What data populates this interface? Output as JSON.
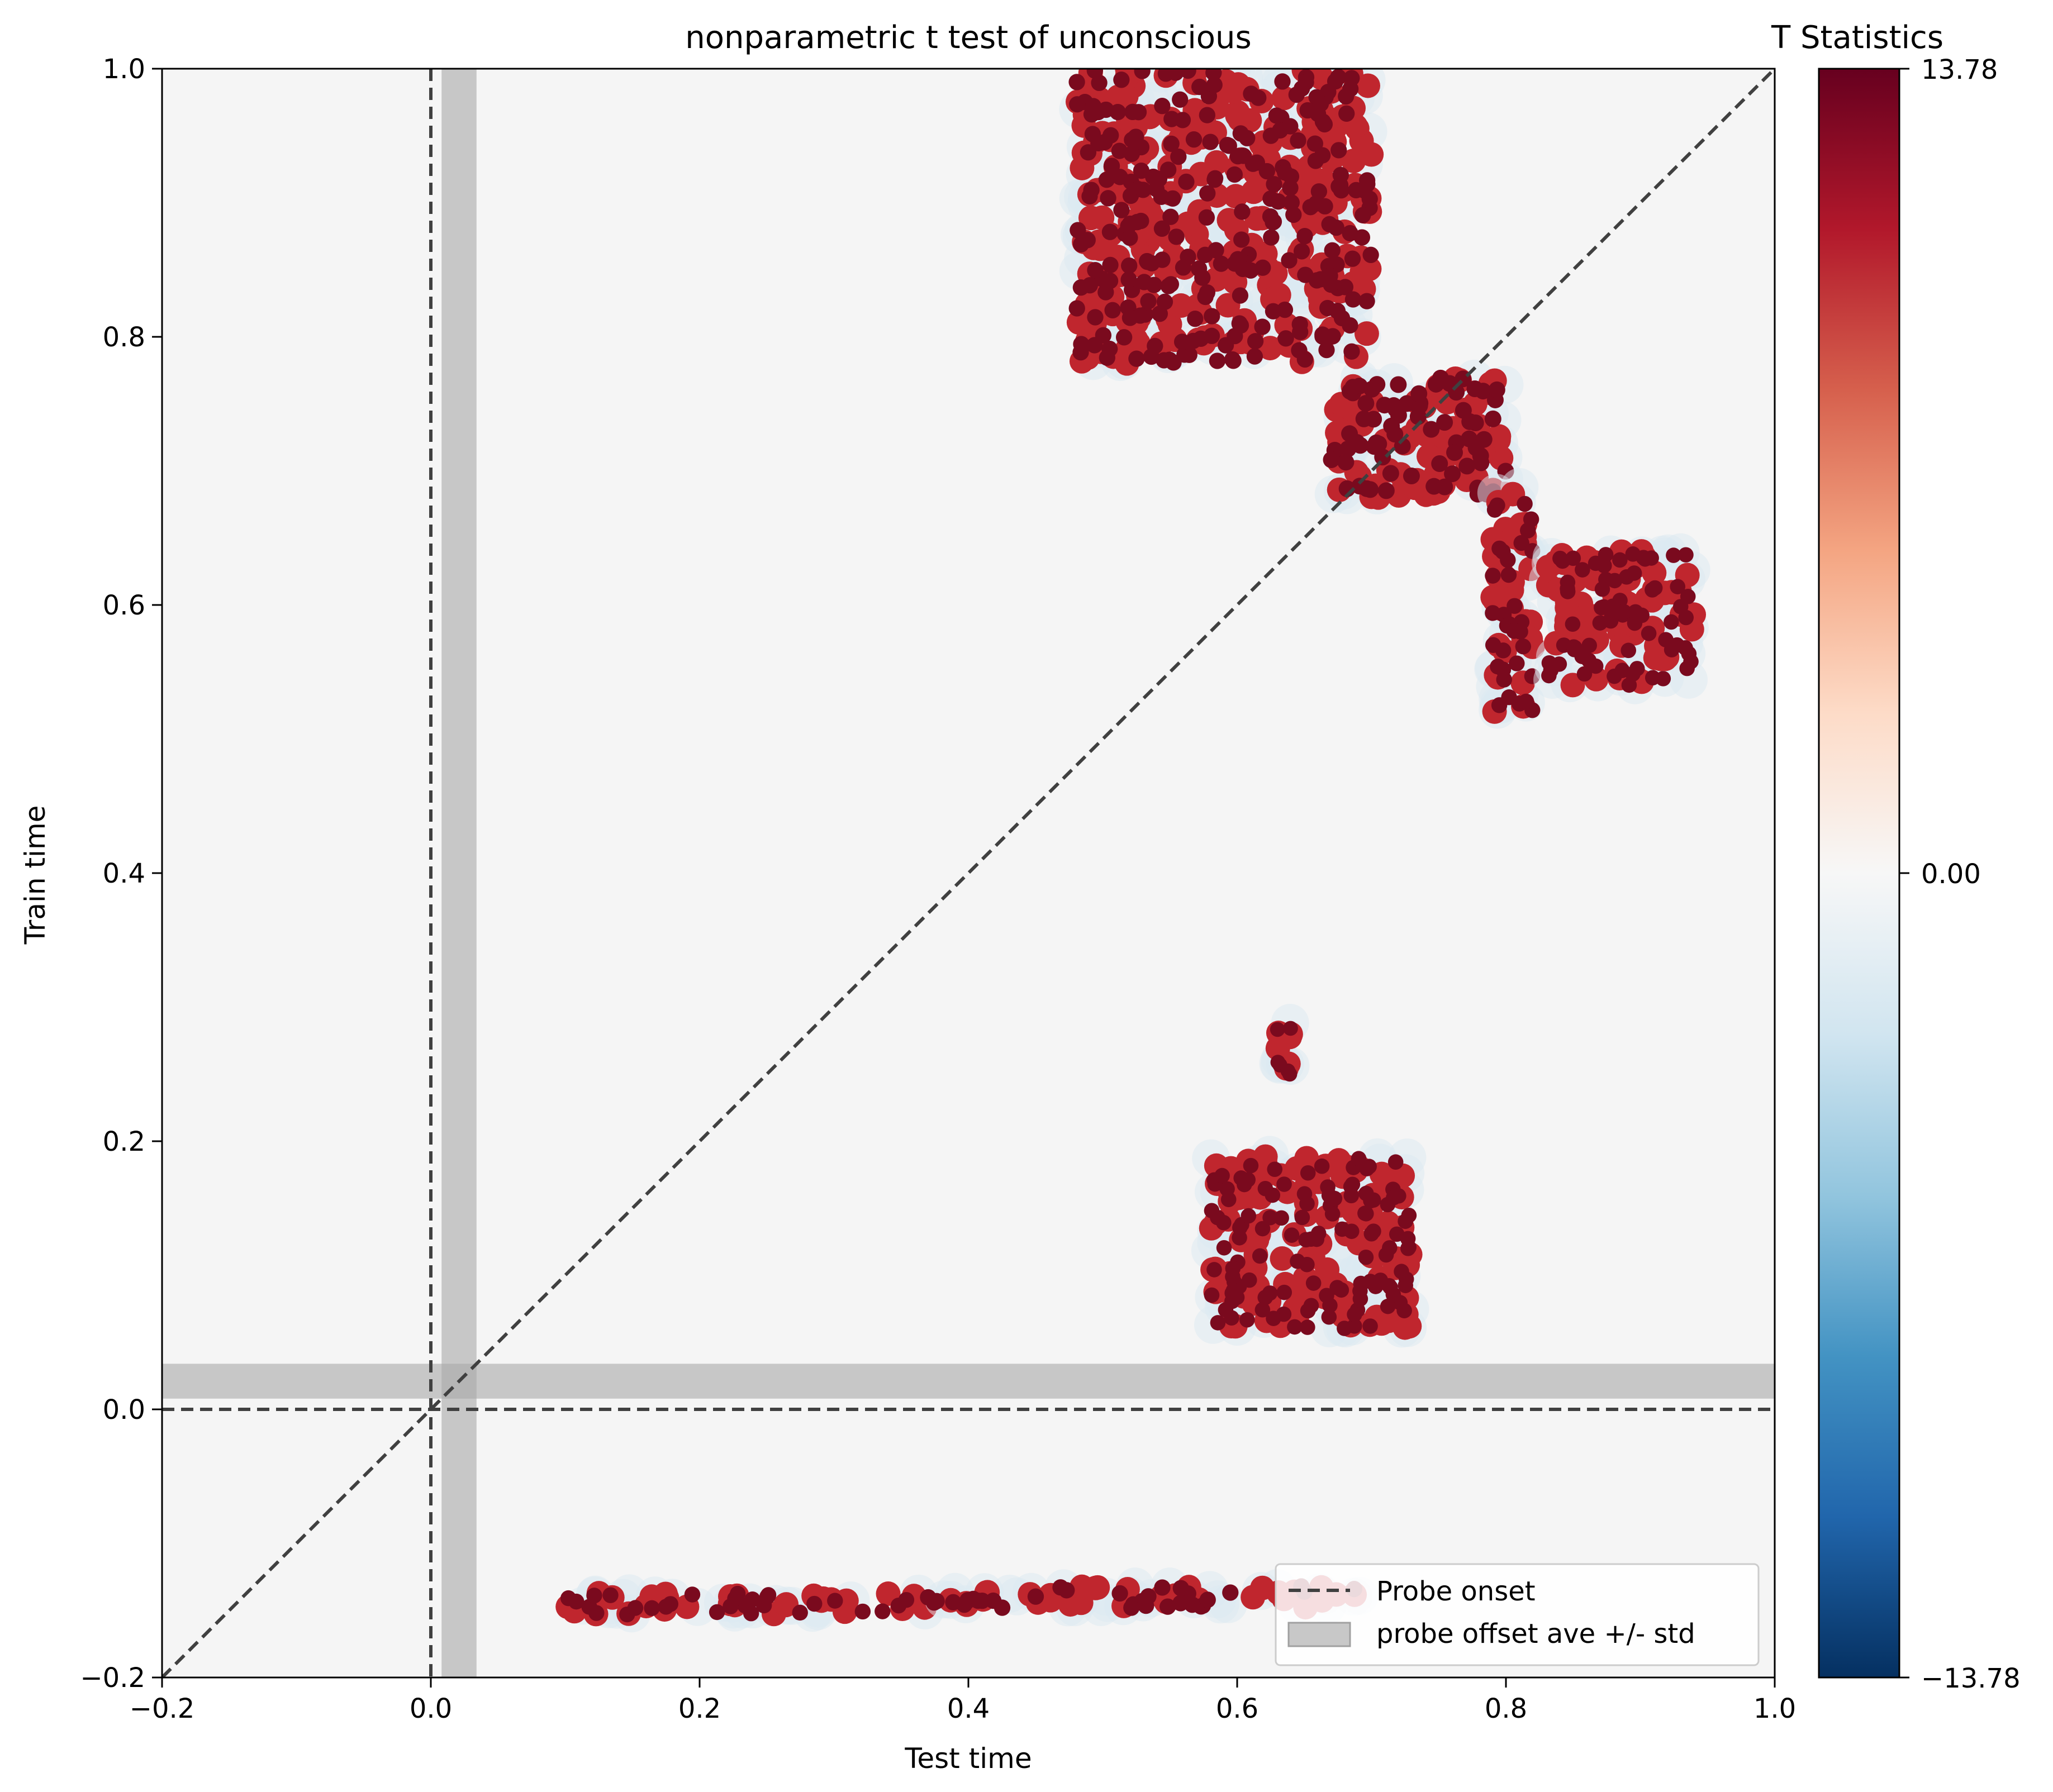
{
  "chart_data": {
    "type": "heatmap",
    "title": "nonparametric t test of unconscious",
    "xlabel": "Test time",
    "ylabel": "Train time",
    "xlim": [
      -0.2,
      1.0
    ],
    "ylim": [
      -0.2,
      1.0
    ],
    "xticks": [
      -0.2,
      0.0,
      0.2,
      0.4,
      0.6,
      0.8,
      1.0
    ],
    "yticks": [
      -0.2,
      0.0,
      0.2,
      0.4,
      0.6,
      0.8,
      1.0
    ],
    "xtick_labels": [
      "−0.2",
      "0.0",
      "0.2",
      "0.4",
      "0.6",
      "0.8",
      "1.0"
    ],
    "ytick_labels": [
      "−0.2",
      "0.0",
      "0.2",
      "0.4",
      "0.6",
      "0.8",
      "1.0"
    ],
    "background_value": 0,
    "reference_lines": {
      "probe_onset": 0.0,
      "diagonal": true,
      "probe_offset_band": [
        0.008,
        0.034
      ]
    },
    "colorbar": {
      "title": "T Statistics",
      "vmin": -13.78,
      "vmax": 13.78,
      "tick_labels": [
        "13.78",
        "0.00",
        "−13.78"
      ],
      "colormap": "RdBu_r"
    },
    "legend": {
      "location": "lower-right",
      "entries": [
        "Probe onset",
        "probe offset ave +/- std"
      ]
    },
    "significant_clusters": [
      {
        "x": [
          0.1,
          0.38
        ],
        "y": -0.145,
        "t": 12
      },
      {
        "x": [
          0.37,
          0.7
        ],
        "y": -0.14,
        "t": 13
      },
      {
        "x": [
          0.58,
          0.73
        ],
        "y": [
          0.06,
          0.19
        ],
        "t": 11
      },
      {
        "x": [
          0.63,
          0.64
        ],
        "y": [
          0.25,
          0.29
        ],
        "t": 10
      },
      {
        "x": [
          0.67,
          0.8
        ],
        "y": [
          0.68,
          0.77
        ],
        "t": 13.78
      },
      {
        "x": [
          0.79,
          0.82
        ],
        "y": [
          0.52,
          0.69
        ],
        "t": 12
      },
      {
        "x": [
          0.83,
          0.94
        ],
        "y": [
          0.54,
          0.64
        ],
        "t": 11
      },
      {
        "x": [
          0.48,
          0.7
        ],
        "y": [
          0.78,
          1.0
        ],
        "t": 13
      }
    ]
  },
  "colors": {
    "background": "#f5f5f5",
    "band": "#c3c3c3",
    "dash": "#404040",
    "cluster_dark": "#7a0a1e",
    "cluster_red": "#c0262e",
    "halo_blue": "#dbe9f2"
  }
}
